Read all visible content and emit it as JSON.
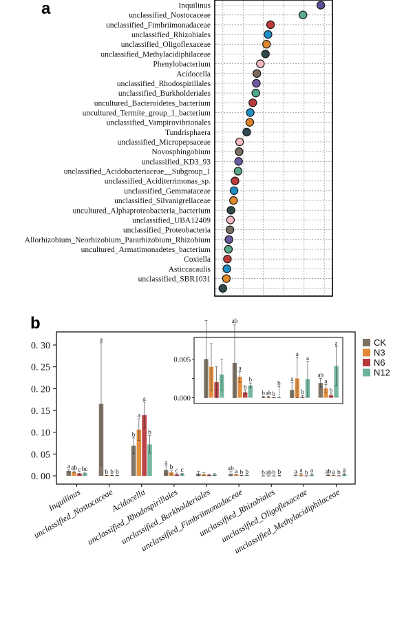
{
  "chart_data": [
    {
      "type": "scatter",
      "panel_label": "a",
      "grid": true,
      "categories": [
        "Inquilinus",
        "unclassified_Nostocaceae",
        "unclassified_Fimbriimonadaceae",
        "unclassified_Rhizobiales",
        "unclassified_Oligoflexaceae",
        "unclassified_Methylacidiphilaceae",
        "Phenylobacterium",
        "Acidocella",
        "unclassified_Rhodospirillales",
        "unclassified_Burkholderiales",
        "uncultured_Bacteroidetes_bacterium",
        "uncultured_Termite_group_1_bacterium",
        "unclassified_Vampirovibrionales",
        "Tundrisphaera",
        "unclassified_Micropepsaceae",
        "Novosphingobium",
        "unclassified_KD3_93",
        "unclassified_Acidobacteriaceae__Subgroup_1",
        "unclassified_Aciditerrimonas_sp.",
        "unclassified_Gemmataceae",
        "unclassified_Silvanigrellaceae",
        "uncultured_Alphaproteobacteria_bacterium",
        "unclassified_UBA12409",
        "unclassified_Proteobacteria",
        "Allorhizobium_Neorhizobium_Pararhizobium_Rhizobium",
        "uncultured_Armatimonadetes_bacterium",
        "Coxiella",
        "Asticcacaulis",
        "unclassified_SBR1031",
        ""
      ],
      "values": [
        0.965,
        0.79,
        0.47,
        0.445,
        0.43,
        0.42,
        0.37,
        0.335,
        0.33,
        0.325,
        0.295,
        0.27,
        0.265,
        0.235,
        0.165,
        0.16,
        0.155,
        0.15,
        0.12,
        0.11,
        0.105,
        0.08,
        0.075,
        0.07,
        0.06,
        0.055,
        0.045,
        0.04,
        0.035,
        0.0
      ],
      "colors": [
        "#5A4E96",
        "#5BAE8C",
        "#C0393B",
        "#1B8FC7",
        "#E28A2C",
        "#2E4A4A",
        "#F4B8C0",
        "#7A6B5D",
        "#6E5AA0",
        "#4FA98A",
        "#B93A3A",
        "#1E90C8",
        "#E0822A",
        "#2E4A52",
        "#F4BCC4",
        "#7A6E62",
        "#6B5BA0",
        "#59A887",
        "#BF3A3A",
        "#1B8FC7",
        "#E28A2C",
        "#2E4A4A",
        "#F4B8C4",
        "#7A6E62",
        "#6B5BA0",
        "#59A887",
        "#BF3A3A",
        "#1B8FC7",
        "#E28A2C",
        "#2E4A4A"
      ],
      "xlim": [
        -0.08,
        1.08
      ]
    },
    {
      "type": "bar",
      "panel_label": "b",
      "categories": [
        "Inquilinus",
        "unclassified_Nostocaceae",
        "Acidocella",
        "unclassified_Rhodospirillales",
        "unclassified_Burkholderiales",
        "unclassified_Fimbriimonadaceae",
        "unclassified_Rhizobiales",
        "unclassified_Oligoflexaceae",
        "unclassified_Methylacidiphilaceae"
      ],
      "yticks": [
        "0. 00",
        "0. 05",
        "0. 10",
        "0. 15",
        "0. 20",
        "0. 25",
        "0. 30"
      ],
      "ylim": [
        0,
        0.33
      ],
      "legend": "right",
      "series": [
        {
          "name": "CK",
          "color": "#7B7162",
          "values": [
            0.011,
            0.165,
            0.069,
            0.013,
            0.005,
            0.0045,
            8e-05,
            0.001,
            0.0019
          ],
          "errors": [
            0.003,
            0.14,
            0.018,
            0.01,
            0.005,
            0.005,
            0.0001,
            0.001,
            0.0006
          ],
          "letters": [
            "a",
            "a",
            "b",
            "a",
            "",
            "ab",
            "b",
            "a",
            "ab"
          ]
        },
        {
          "name": "N3",
          "color": "#E08A36",
          "values": [
            0.009,
            0.001,
            0.106,
            0.008,
            0.004,
            0.0027,
            8e-05,
            0.0025,
            0.0012
          ],
          "errors": [
            0.002,
            0.0005,
            0.025,
            0.005,
            0.003,
            0.0007,
            0.0001,
            0.0027,
            0.0005
          ],
          "letters": [
            "ab",
            "b",
            "a",
            "b",
            "",
            "a",
            "ab",
            "a",
            "a"
          ]
        },
        {
          "name": "N6",
          "color": "#B7393C",
          "values": [
            0.005,
            0.001,
            0.139,
            0.003,
            0.002,
            0.0007,
            1e-05,
            0.0001,
            0.0003
          ],
          "errors": [
            0.001,
            0.0005,
            0.03,
            0.002,
            0.002,
            0.0002,
            3e-05,
            0.0002,
            0.0002
          ],
          "letters": [
            "c",
            "b",
            "a",
            "c",
            "",
            "b",
            "b",
            "b",
            "b"
          ]
        },
        {
          "name": "N12",
          "color": "#6BB39A",
          "values": [
            0.006,
            0.001,
            0.072,
            0.004,
            0.003,
            0.0016,
            4e-05,
            0.0024,
            0.0041
          ],
          "errors": [
            0.002,
            0.0005,
            0.02,
            0.002,
            0.002,
            0.0003,
            0.0014,
            0.0023,
            0.0025
          ],
          "letters": [
            "bc",
            "b",
            "b",
            "c",
            "",
            "b",
            "b",
            "a",
            "a"
          ]
        }
      ],
      "inset": {
        "category_indices": [
          4,
          5,
          6,
          7,
          8
        ],
        "yticks": [
          "0.000",
          "",
          "0.005"
        ],
        "ylim": [
          -0.0004,
          0.0078
        ]
      }
    }
  ]
}
